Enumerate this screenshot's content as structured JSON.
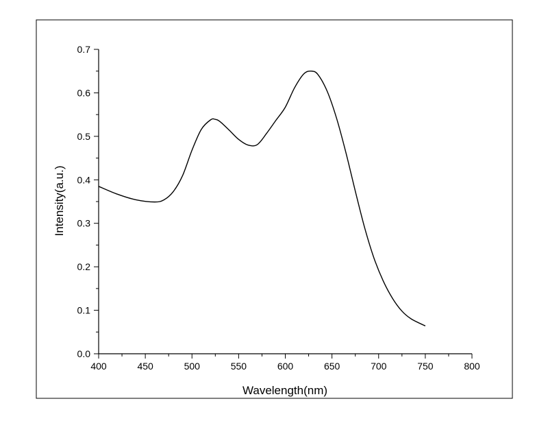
{
  "chart_data": {
    "type": "line",
    "title": "",
    "xlabel": "Wavelength(nm)",
    "ylabel": "Intensity(a.u.)",
    "xlim": [
      400,
      800
    ],
    "ylim": [
      0.0,
      0.7
    ],
    "x_ticks": [
      "400",
      "450",
      "500",
      "550",
      "600",
      "650",
      "700",
      "750",
      "800"
    ],
    "y_ticks": [
      "0.0",
      "0.1",
      "0.2",
      "0.3",
      "0.4",
      "0.5",
      "0.6",
      "0.7"
    ],
    "grid": false,
    "legend": "none",
    "line_color": "#000000",
    "series": [
      {
        "x": [
          400,
          420,
          440,
          460,
          470,
          480,
          490,
          500,
          510,
          520,
          525,
          530,
          540,
          550,
          560,
          570,
          580,
          590,
          600,
          610,
          620,
          628,
          635,
          645,
          655,
          665,
          675,
          685,
          695,
          705,
          715,
          725,
          735,
          750
        ],
        "values": [
          0.385,
          0.367,
          0.354,
          0.349,
          0.354,
          0.373,
          0.41,
          0.468,
          0.516,
          0.538,
          0.539,
          0.534,
          0.514,
          0.493,
          0.48,
          0.481,
          0.507,
          0.537,
          0.567,
          0.612,
          0.644,
          0.65,
          0.642,
          0.603,
          0.541,
          0.462,
          0.374,
          0.29,
          0.22,
          0.167,
          0.127,
          0.098,
          0.08,
          0.064
        ]
      }
    ]
  }
}
